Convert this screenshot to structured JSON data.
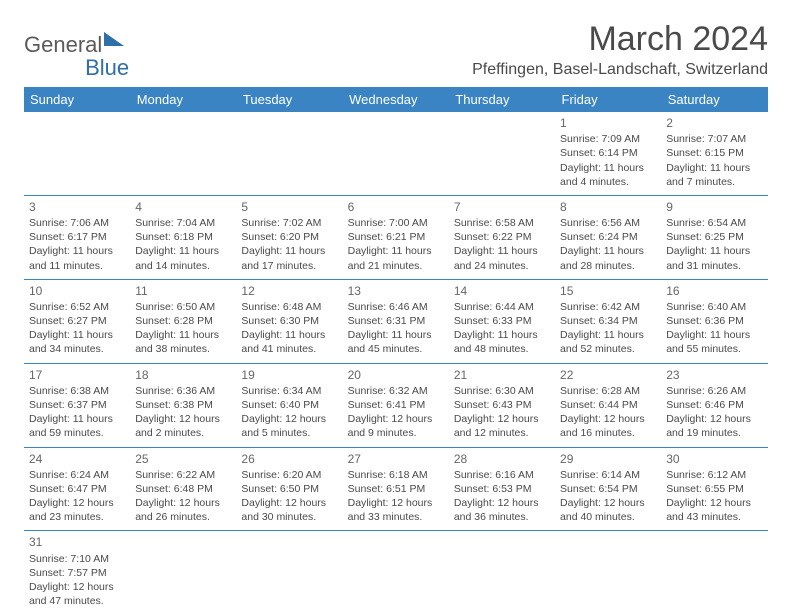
{
  "brand": {
    "part1": "General",
    "part2": "Blue"
  },
  "title": "March 2024",
  "location": "Pfeffingen, Basel-Landschaft, Switzerland",
  "columns": [
    "Sunday",
    "Monday",
    "Tuesday",
    "Wednesday",
    "Thursday",
    "Friday",
    "Saturday"
  ],
  "colors": {
    "header_bg": "#3a84c4",
    "header_text": "#ffffff",
    "rule": "#3a84c4",
    "text": "#4a4a4a"
  },
  "weeks": [
    [
      null,
      null,
      null,
      null,
      null,
      {
        "d": "1",
        "sr": "Sunrise: 7:09 AM",
        "ss": "Sunset: 6:14 PM",
        "dl1": "Daylight: 11 hours",
        "dl2": "and 4 minutes."
      },
      {
        "d": "2",
        "sr": "Sunrise: 7:07 AM",
        "ss": "Sunset: 6:15 PM",
        "dl1": "Daylight: 11 hours",
        "dl2": "and 7 minutes."
      }
    ],
    [
      {
        "d": "3",
        "sr": "Sunrise: 7:06 AM",
        "ss": "Sunset: 6:17 PM",
        "dl1": "Daylight: 11 hours",
        "dl2": "and 11 minutes."
      },
      {
        "d": "4",
        "sr": "Sunrise: 7:04 AM",
        "ss": "Sunset: 6:18 PM",
        "dl1": "Daylight: 11 hours",
        "dl2": "and 14 minutes."
      },
      {
        "d": "5",
        "sr": "Sunrise: 7:02 AM",
        "ss": "Sunset: 6:20 PM",
        "dl1": "Daylight: 11 hours",
        "dl2": "and 17 minutes."
      },
      {
        "d": "6",
        "sr": "Sunrise: 7:00 AM",
        "ss": "Sunset: 6:21 PM",
        "dl1": "Daylight: 11 hours",
        "dl2": "and 21 minutes."
      },
      {
        "d": "7",
        "sr": "Sunrise: 6:58 AM",
        "ss": "Sunset: 6:22 PM",
        "dl1": "Daylight: 11 hours",
        "dl2": "and 24 minutes."
      },
      {
        "d": "8",
        "sr": "Sunrise: 6:56 AM",
        "ss": "Sunset: 6:24 PM",
        "dl1": "Daylight: 11 hours",
        "dl2": "and 28 minutes."
      },
      {
        "d": "9",
        "sr": "Sunrise: 6:54 AM",
        "ss": "Sunset: 6:25 PM",
        "dl1": "Daylight: 11 hours",
        "dl2": "and 31 minutes."
      }
    ],
    [
      {
        "d": "10",
        "sr": "Sunrise: 6:52 AM",
        "ss": "Sunset: 6:27 PM",
        "dl1": "Daylight: 11 hours",
        "dl2": "and 34 minutes."
      },
      {
        "d": "11",
        "sr": "Sunrise: 6:50 AM",
        "ss": "Sunset: 6:28 PM",
        "dl1": "Daylight: 11 hours",
        "dl2": "and 38 minutes."
      },
      {
        "d": "12",
        "sr": "Sunrise: 6:48 AM",
        "ss": "Sunset: 6:30 PM",
        "dl1": "Daylight: 11 hours",
        "dl2": "and 41 minutes."
      },
      {
        "d": "13",
        "sr": "Sunrise: 6:46 AM",
        "ss": "Sunset: 6:31 PM",
        "dl1": "Daylight: 11 hours",
        "dl2": "and 45 minutes."
      },
      {
        "d": "14",
        "sr": "Sunrise: 6:44 AM",
        "ss": "Sunset: 6:33 PM",
        "dl1": "Daylight: 11 hours",
        "dl2": "and 48 minutes."
      },
      {
        "d": "15",
        "sr": "Sunrise: 6:42 AM",
        "ss": "Sunset: 6:34 PM",
        "dl1": "Daylight: 11 hours",
        "dl2": "and 52 minutes."
      },
      {
        "d": "16",
        "sr": "Sunrise: 6:40 AM",
        "ss": "Sunset: 6:36 PM",
        "dl1": "Daylight: 11 hours",
        "dl2": "and 55 minutes."
      }
    ],
    [
      {
        "d": "17",
        "sr": "Sunrise: 6:38 AM",
        "ss": "Sunset: 6:37 PM",
        "dl1": "Daylight: 11 hours",
        "dl2": "and 59 minutes."
      },
      {
        "d": "18",
        "sr": "Sunrise: 6:36 AM",
        "ss": "Sunset: 6:38 PM",
        "dl1": "Daylight: 12 hours",
        "dl2": "and 2 minutes."
      },
      {
        "d": "19",
        "sr": "Sunrise: 6:34 AM",
        "ss": "Sunset: 6:40 PM",
        "dl1": "Daylight: 12 hours",
        "dl2": "and 5 minutes."
      },
      {
        "d": "20",
        "sr": "Sunrise: 6:32 AM",
        "ss": "Sunset: 6:41 PM",
        "dl1": "Daylight: 12 hours",
        "dl2": "and 9 minutes."
      },
      {
        "d": "21",
        "sr": "Sunrise: 6:30 AM",
        "ss": "Sunset: 6:43 PM",
        "dl1": "Daylight: 12 hours",
        "dl2": "and 12 minutes."
      },
      {
        "d": "22",
        "sr": "Sunrise: 6:28 AM",
        "ss": "Sunset: 6:44 PM",
        "dl1": "Daylight: 12 hours",
        "dl2": "and 16 minutes."
      },
      {
        "d": "23",
        "sr": "Sunrise: 6:26 AM",
        "ss": "Sunset: 6:46 PM",
        "dl1": "Daylight: 12 hours",
        "dl2": "and 19 minutes."
      }
    ],
    [
      {
        "d": "24",
        "sr": "Sunrise: 6:24 AM",
        "ss": "Sunset: 6:47 PM",
        "dl1": "Daylight: 12 hours",
        "dl2": "and 23 minutes."
      },
      {
        "d": "25",
        "sr": "Sunrise: 6:22 AM",
        "ss": "Sunset: 6:48 PM",
        "dl1": "Daylight: 12 hours",
        "dl2": "and 26 minutes."
      },
      {
        "d": "26",
        "sr": "Sunrise: 6:20 AM",
        "ss": "Sunset: 6:50 PM",
        "dl1": "Daylight: 12 hours",
        "dl2": "and 30 minutes."
      },
      {
        "d": "27",
        "sr": "Sunrise: 6:18 AM",
        "ss": "Sunset: 6:51 PM",
        "dl1": "Daylight: 12 hours",
        "dl2": "and 33 minutes."
      },
      {
        "d": "28",
        "sr": "Sunrise: 6:16 AM",
        "ss": "Sunset: 6:53 PM",
        "dl1": "Daylight: 12 hours",
        "dl2": "and 36 minutes."
      },
      {
        "d": "29",
        "sr": "Sunrise: 6:14 AM",
        "ss": "Sunset: 6:54 PM",
        "dl1": "Daylight: 12 hours",
        "dl2": "and 40 minutes."
      },
      {
        "d": "30",
        "sr": "Sunrise: 6:12 AM",
        "ss": "Sunset: 6:55 PM",
        "dl1": "Daylight: 12 hours",
        "dl2": "and 43 minutes."
      }
    ],
    [
      {
        "d": "31",
        "sr": "Sunrise: 7:10 AM",
        "ss": "Sunset: 7:57 PM",
        "dl1": "Daylight: 12 hours",
        "dl2": "and 47 minutes."
      },
      null,
      null,
      null,
      null,
      null,
      null
    ]
  ]
}
